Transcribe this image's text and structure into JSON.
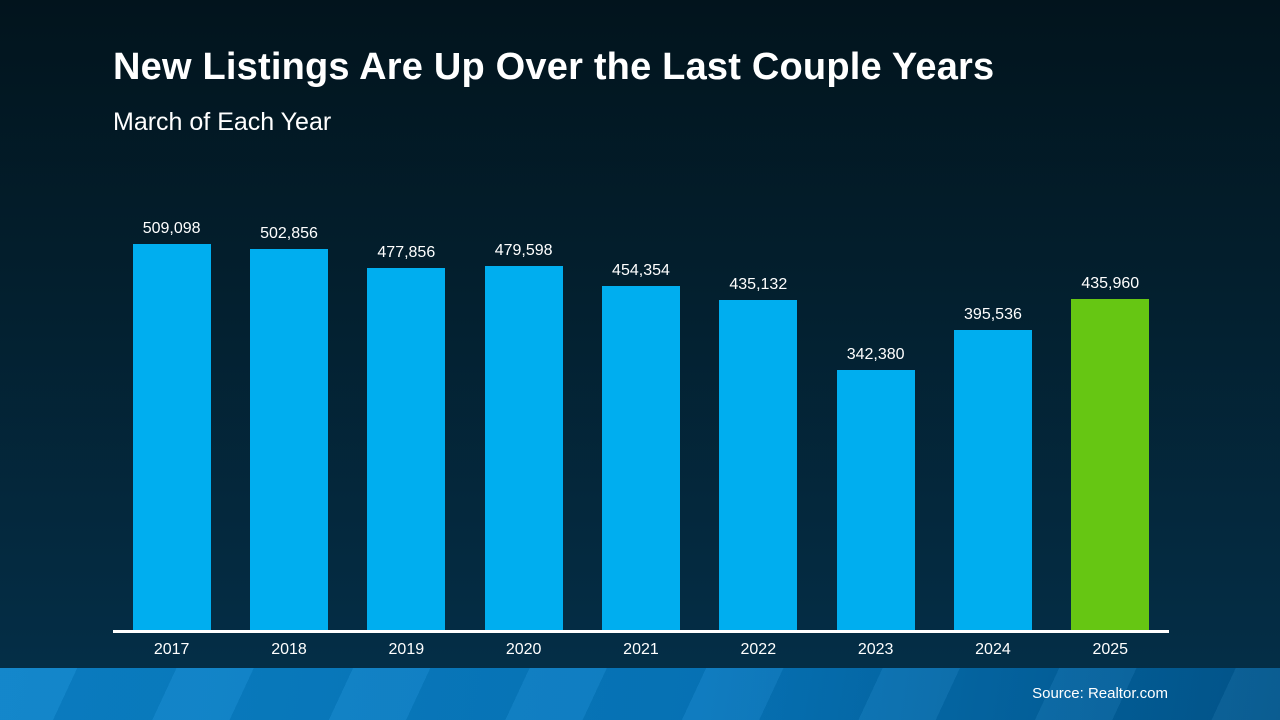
{
  "slide": {
    "title": "New Listings Are Up Over the Last Couple Years",
    "subtitle": "March of Each Year",
    "source": "Source: Realtor.com"
  },
  "colors": {
    "background_top": "#02141d",
    "background_bottom": "#04304a",
    "text": "#ffffff",
    "axis": "#ffffff",
    "bar": "#00aeef",
    "highlight": "#66c613",
    "footer_left": "#0a82c9",
    "footer_right": "#01568d"
  },
  "chart_data": {
    "type": "bar",
    "title": "New Listings Are Up Over the Last Couple Years",
    "subtitle": "March of Each Year",
    "categories": [
      "2017",
      "2018",
      "2019",
      "2020",
      "2021",
      "2022",
      "2023",
      "2024",
      "2025"
    ],
    "values": [
      509098,
      502856,
      477856,
      479598,
      454354,
      435132,
      342380,
      395536,
      435960
    ],
    "value_labels": [
      "509,098",
      "502,856",
      "477,856",
      "479,598",
      "454,354",
      "435,132",
      "342,380",
      "395,536",
      "435,960"
    ],
    "xlabel": "",
    "ylabel": "",
    "ylim": [
      0,
      509098
    ],
    "grid": false,
    "legend": false,
    "bar_color": "#00aeef",
    "highlight_category": "2025",
    "highlight_color": "#66c613",
    "annotation": "Source: Realtor.com"
  }
}
